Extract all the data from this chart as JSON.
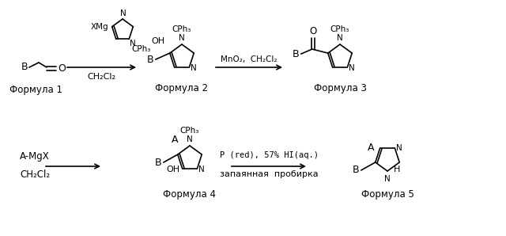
{
  "bg_color": "#ffffff",
  "fig_width": 6.4,
  "fig_height": 2.98,
  "dpi": 100,
  "black": "#000000",
  "lw": 1.2,
  "formula1_label": "Формула 1",
  "formula2_label": "Формула 2",
  "formula3_label": "Формула 3",
  "formula4_label": "Формула 4",
  "formula5_label": "Формула 5",
  "arrow1_label": "CH₂Cl₂",
  "arrow2_label": "MnO₂,  CH₂Cl₂",
  "arrow3_label1": "A-MgX",
  "arrow3_label2": "CH₂Cl₂",
  "arrow4_label1": "P (red), 57% HI(aq.)",
  "arrow4_label2": "запаянная  пробирка"
}
